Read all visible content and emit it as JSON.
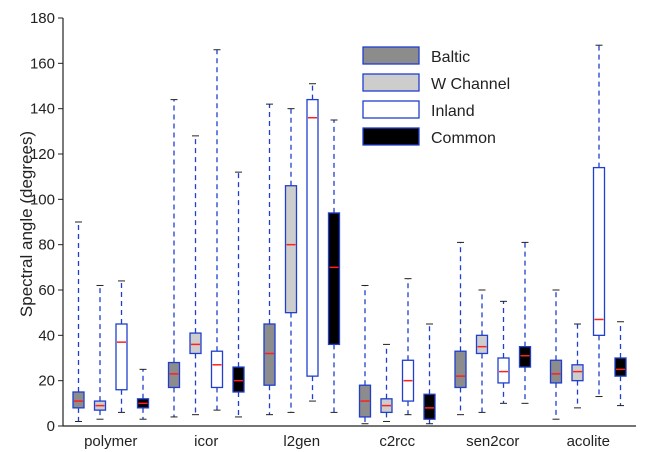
{
  "chart_data": {
    "type": "box",
    "title": "",
    "xlabel": "",
    "ylabel": "Spectral angle (degrees)",
    "ylim": [
      0,
      180
    ],
    "yticks": [
      0,
      20,
      40,
      60,
      80,
      100,
      120,
      140,
      160,
      180
    ],
    "grid": false,
    "legend_position": "top-center",
    "categories": [
      "polymer",
      "icor",
      "l2gen",
      "c2rcc",
      "sen2cor",
      "acolite"
    ],
    "series": [
      {
        "name": "Baltic",
        "fill": "#8c8c8c",
        "boxes": [
          {
            "whislo": 2,
            "q1": 8,
            "med": 11,
            "q3": 15,
            "whishi": 90
          },
          {
            "whislo": 4,
            "q1": 17,
            "med": 23,
            "q3": 28,
            "whishi": 144
          },
          {
            "whislo": 5,
            "q1": 18,
            "med": 32,
            "q3": 45,
            "whishi": 142
          },
          {
            "whislo": 1,
            "q1": 4,
            "med": 11,
            "q3": 18,
            "whishi": 62
          },
          {
            "whislo": 5,
            "q1": 17,
            "med": 22,
            "q3": 33,
            "whishi": 81
          },
          {
            "whislo": 3,
            "q1": 19,
            "med": 23,
            "q3": 29,
            "whishi": 60
          }
        ]
      },
      {
        "name": "W Channel",
        "fill": "#cdcdcd",
        "boxes": [
          {
            "whislo": 3,
            "q1": 7,
            "med": 9,
            "q3": 11,
            "whishi": 62
          },
          {
            "whislo": 5,
            "q1": 32,
            "med": 36,
            "q3": 41,
            "whishi": 128
          },
          {
            "whislo": 6,
            "q1": 50,
            "med": 80,
            "q3": 106,
            "whishi": 140
          },
          {
            "whislo": 2,
            "q1": 6,
            "med": 9,
            "q3": 12,
            "whishi": 36
          },
          {
            "whislo": 6,
            "q1": 32,
            "med": 35,
            "q3": 40,
            "whishi": 60
          },
          {
            "whislo": 8,
            "q1": 20,
            "med": 24,
            "q3": 27,
            "whishi": 45
          }
        ]
      },
      {
        "name": "Inland",
        "fill": "#ffffff",
        "boxes": [
          {
            "whislo": 6,
            "q1": 16,
            "med": 37,
            "q3": 45,
            "whishi": 64
          },
          {
            "whislo": 7,
            "q1": 17,
            "med": 27,
            "q3": 33,
            "whishi": 166
          },
          {
            "whislo": 11,
            "q1": 22,
            "med": 136,
            "q3": 144,
            "whishi": 151
          },
          {
            "whislo": 5,
            "q1": 11,
            "med": 20,
            "q3": 29,
            "whishi": 65
          },
          {
            "whislo": 10,
            "q1": 19,
            "med": 24,
            "q3": 30,
            "whishi": 55
          },
          {
            "whislo": 13,
            "q1": 40,
            "med": 47,
            "q3": 114,
            "whishi": 168
          }
        ]
      },
      {
        "name": "Common",
        "fill": "#000000",
        "boxes": [
          {
            "whislo": 3,
            "q1": 8,
            "med": 10,
            "q3": 12,
            "whishi": 25
          },
          {
            "whislo": 4,
            "q1": 15,
            "med": 20,
            "q3": 26,
            "whishi": 112
          },
          {
            "whislo": 6,
            "q1": 36,
            "med": 70,
            "q3": 94,
            "whishi": 135
          },
          {
            "whislo": 1,
            "q1": 3,
            "med": 8,
            "q3": 14,
            "whishi": 45
          },
          {
            "whislo": 10,
            "q1": 26,
            "med": 31,
            "q3": 35,
            "whishi": 81
          },
          {
            "whislo": 9,
            "q1": 22,
            "med": 25,
            "q3": 30,
            "whishi": 46
          }
        ]
      }
    ],
    "colors": {
      "box_edge": "#1f3fcc",
      "whisker": "#1f3fcc",
      "median": "#ff2020",
      "axis": "#222222"
    }
  }
}
